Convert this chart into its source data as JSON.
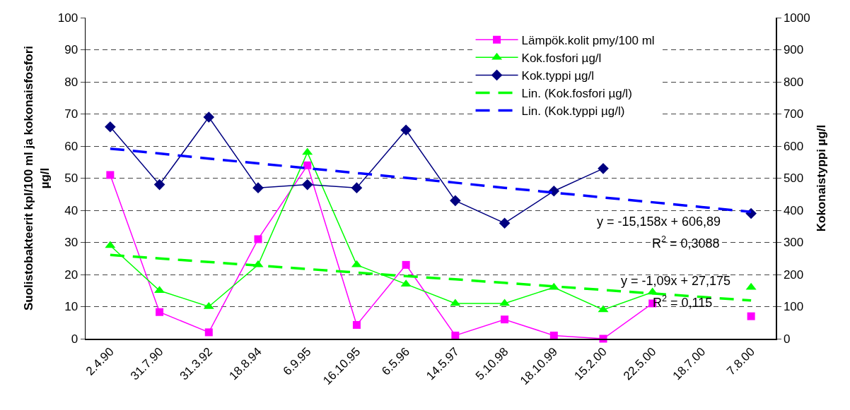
{
  "chart_data": {
    "type": "line",
    "ylabel": "Suolistobakteerit kpl/100 ml ja kokonaisfosfori µg/l",
    "y2label": "Kokonaistyppi µg/l",
    "categories": [
      "2.4.90",
      "31.7.90",
      "31.3.92",
      "18.8.94",
      "6.9.95",
      "16.10.95",
      "6.5.96",
      "14.5.97",
      "5.10.98",
      "18.10.99",
      "15.2.00",
      "22.5.00",
      "18.7.00",
      "7.8.00"
    ],
    "series": [
      {
        "name": "Lämpök.kolit pmy/100 ml",
        "color": "#ff00ff",
        "marker": "square",
        "values": [
          51,
          8.3,
          2,
          31,
          54,
          4.3,
          23,
          1,
          6,
          1,
          0,
          11,
          null,
          7
        ]
      },
      {
        "name": "Kok.fosfori µg/l",
        "color": "#00ff00",
        "marker": "triangle",
        "values": [
          29,
          15,
          10,
          23,
          58,
          23,
          17,
          11,
          11,
          16,
          9,
          14.5,
          null,
          16
        ]
      },
      {
        "name": "Kok.typpi µg/l",
        "color": "#000080",
        "marker": "diamond",
        "axis": "y2",
        "values": [
          660,
          480,
          690,
          470,
          480,
          470,
          650,
          430,
          360,
          460,
          530,
          null,
          null,
          390
        ]
      },
      {
        "name": "Lin. (Kok.fosfori µg/l)",
        "color": "#00ff00",
        "marker": "none",
        "line_style": "dashed",
        "values": [
          26.1,
          25.0,
          23.9,
          22.8,
          21.7,
          20.6,
          19.5,
          18.5,
          17.4,
          16.3,
          15.2,
          14.1,
          13.0,
          11.9
        ]
      },
      {
        "name": "Lin. (Kok.typpi µg/l)",
        "color": "#0000ff",
        "marker": "none",
        "line_style": "dashed",
        "axis": "y2",
        "values": [
          592,
          577,
          561,
          546,
          531,
          516,
          501,
          486,
          470,
          455,
          440,
          425,
          410,
          395
        ]
      }
    ],
    "ylim": [
      0,
      100
    ],
    "yticks": [
      0,
      10,
      20,
      30,
      40,
      50,
      60,
      70,
      80,
      90,
      100
    ],
    "y2lim": [
      0,
      1000
    ],
    "y2ticks": [
      0,
      100,
      200,
      300,
      400,
      500,
      600,
      700,
      800,
      900,
      1000
    ],
    "grid": "y",
    "legend": "top right",
    "annotations": [
      "y = -15,158x + 606,89",
      "R$^{2}$ = 0,3088",
      "y = -1,09x + 27,175",
      "R$^{2}$ = 0,115"
    ]
  }
}
